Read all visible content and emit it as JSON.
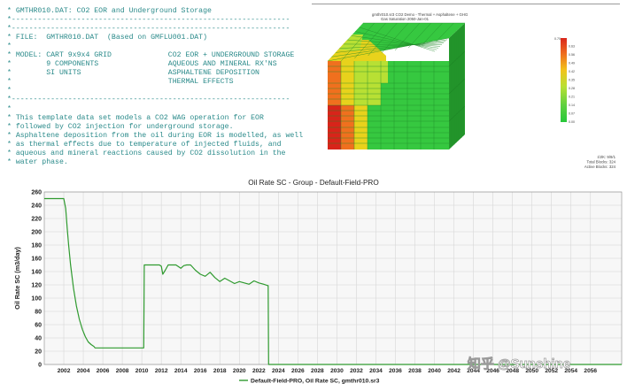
{
  "editor": {
    "lines": [
      "* GMTHR010.DAT: CO2 EOR and Underground Storage",
      "*----------------------------------------------------------------",
      "*----------------------------------------------------------------",
      "* FILE:  GMTHR010.DAT  (Based on GMFLU001.DAT)",
      "*",
      "* MODEL: CART 9x9x4 GRID             CO2 EOR + UNDERGROUND STORAGE",
      "*        9 COMPONENTS                AQUEOUS AND MINERAL RX'NS",
      "*        SI UNITS                    ASPHALTENE DEPOSITION",
      "*                                    THERMAL EFFECTS",
      "*",
      "*----------------------------------------------------------------",
      "*",
      "* This template data set models a CO2 WAG operation for EOR",
      "* followed by CO2 injection for underground storage.",
      "* Asphaltene deposition from the oil during EOR is modelled, as well",
      "* as thermal effects due to temperature of injected fluids, and",
      "* aqueous and mineral reactions caused by CO2 dissolution in the",
      "* water phase."
    ]
  },
  "viewer": {
    "title": "gmthr010.sr3 CO2 Demo - Thermal + Asphaltene + GHG",
    "subtitle": "Gas Saturation  2050-Jan-01",
    "legend_colors": [
      "#d9261c",
      "#ee6a1e",
      "#f2c21a",
      "#b8e034",
      "#5fd040",
      "#27c83a"
    ],
    "legend_max": "0.70",
    "legend_ticks": [
      "0.63",
      "0.56",
      "0.49",
      "0.42",
      "0.35",
      "0.28",
      "0.21",
      "0.14",
      "0.07"
    ],
    "legend_min": "0.00",
    "info": [
      "I/J/K: 9/9/1",
      "Total Blocks: 324",
      "Active Blocks: 324"
    ],
    "colors": {
      "green": "#36c840",
      "dark_green": "#249a2c",
      "red": "#d8241a",
      "orange": "#f0701e",
      "yellow": "#e8d21c",
      "lime": "#b8e034"
    }
  },
  "chart_data": {
    "type": "line",
    "title": "Oil Rate SC - Group - Default-Field-PRO",
    "ylabel": "Oil Rate SC (m3/day)",
    "xlabel": "",
    "xlim": [
      2000.0,
      2059.2
    ],
    "ylim": [
      0,
      260
    ],
    "xticks": [
      2002,
      2004,
      2006,
      2008,
      2010,
      2012,
      2014,
      2016,
      2018,
      2020,
      2022,
      2024,
      2026,
      2028,
      2030,
      2032,
      2034,
      2036,
      2038,
      2040,
      2042,
      2044,
      2046,
      2048,
      2050,
      2052,
      2054,
      2056
    ],
    "yticks": [
      0,
      20,
      40,
      60,
      80,
      100,
      120,
      140,
      160,
      180,
      200,
      220,
      240,
      260
    ],
    "grid": true,
    "legend_position": "bottom-center",
    "series": [
      {
        "name": "Default-Field-PRO, Oil Rate SC, gmthr010.sr3",
        "color": "#2f9a2f",
        "x": [
          2000.0,
          2001.0,
          2002.0,
          2002.2,
          2002.35,
          2002.5,
          2002.7,
          2003.0,
          2003.3,
          2003.6,
          2003.9,
          2004.2,
          2004.5,
          2004.8,
          2005.0,
          2005.1,
          2005.2,
          2006.0,
          2008.0,
          2010.0,
          2010.2,
          2010.25,
          2011.0,
          2011.8,
          2012.0,
          2012.15,
          2012.4,
          2012.7,
          2013.0,
          2013.5,
          2014.0,
          2014.3,
          2014.6,
          2015.0,
          2015.5,
          2016.0,
          2016.5,
          2017.0,
          2017.5,
          2018.0,
          2018.5,
          2019.0,
          2019.5,
          2020.0,
          2020.5,
          2021.0,
          2021.5,
          2022.0,
          2022.5,
          2022.9,
          2022.95,
          2023.0,
          2059.2
        ],
        "y": [
          250,
          250,
          250,
          235,
          205,
          180,
          150,
          115,
          88,
          68,
          53,
          42,
          34,
          30,
          28,
          27,
          25,
          25,
          25,
          25,
          25,
          150,
          150,
          150,
          148,
          136,
          142,
          150,
          150,
          150,
          145,
          149,
          150,
          150,
          142,
          136,
          133,
          139,
          131,
          125,
          130,
          126,
          122,
          125,
          123,
          121,
          126,
          123,
          121,
          119,
          119,
          0,
          0
        ]
      }
    ]
  },
  "watermark": "知乎 @Sunshine"
}
